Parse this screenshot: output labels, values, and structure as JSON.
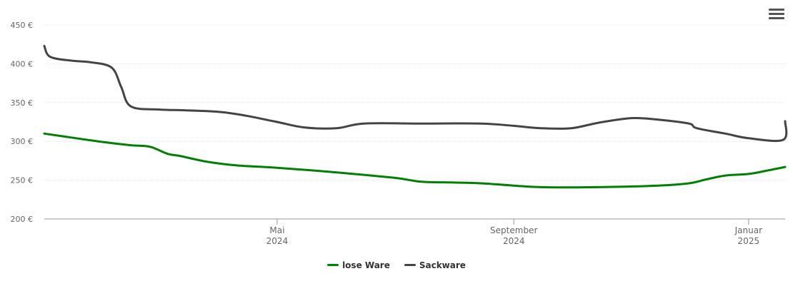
{
  "chart_data": {
    "type": "line",
    "title": "",
    "xlabel": "",
    "ylabel": "",
    "y_unit": "€",
    "ylim": [
      200,
      450
    ],
    "yticks": [
      200,
      250,
      300,
      350,
      400,
      450
    ],
    "ytick_labels": [
      "200 €",
      "250 €",
      "300 €",
      "350 €",
      "400 €",
      "450 €"
    ],
    "xlim": [
      "2024-01-01",
      "2025-01-20"
    ],
    "xticks": [
      {
        "date": "2024-05-01",
        "month": "Mai",
        "year": "2024"
      },
      {
        "date": "2024-09-01",
        "month": "September",
        "year": "2024"
      },
      {
        "date": "2025-01-01",
        "month": "Januar",
        "year": "2025"
      }
    ],
    "grid": true,
    "legend_position": "bottom-center",
    "series": [
      {
        "name": "lose Ware",
        "color": "#008000",
        "points": [
          [
            "2024-01-01",
            310
          ],
          [
            "2024-01-15",
            305
          ],
          [
            "2024-02-01",
            299
          ],
          [
            "2024-02-15",
            295
          ],
          [
            "2024-02-25",
            293
          ],
          [
            "2024-03-05",
            284
          ],
          [
            "2024-03-12",
            281
          ],
          [
            "2024-03-25",
            274
          ],
          [
            "2024-04-10",
            269
          ],
          [
            "2024-05-01",
            266
          ],
          [
            "2024-06-01",
            260
          ],
          [
            "2024-07-01",
            253
          ],
          [
            "2024-07-15",
            248
          ],
          [
            "2024-08-01",
            247
          ],
          [
            "2024-08-15",
            246
          ],
          [
            "2024-09-01",
            243
          ],
          [
            "2024-09-15",
            241
          ],
          [
            "2024-10-15",
            241
          ],
          [
            "2024-11-15",
            243
          ],
          [
            "2024-12-01",
            246
          ],
          [
            "2024-12-10",
            251
          ],
          [
            "2024-12-20",
            256
          ],
          [
            "2025-01-01",
            258
          ],
          [
            "2025-01-10",
            262
          ],
          [
            "2025-01-20",
            267
          ]
        ]
      },
      {
        "name": "Sackware",
        "color": "#434348",
        "points": [
          [
            "2024-01-01",
            423
          ],
          [
            "2024-01-04",
            409
          ],
          [
            "2024-01-15",
            404
          ],
          [
            "2024-01-25",
            402
          ],
          [
            "2024-02-05",
            395
          ],
          [
            "2024-02-10",
            370
          ],
          [
            "2024-02-15",
            345
          ],
          [
            "2024-03-01",
            341
          ],
          [
            "2024-03-15",
            340
          ],
          [
            "2024-04-01",
            338
          ],
          [
            "2024-04-15",
            333
          ],
          [
            "2024-05-01",
            325
          ],
          [
            "2024-05-15",
            318
          ],
          [
            "2024-06-01",
            317
          ],
          [
            "2024-06-15",
            323
          ],
          [
            "2024-07-15",
            323
          ],
          [
            "2024-08-15",
            323
          ],
          [
            "2024-09-01",
            320
          ],
          [
            "2024-09-15",
            317
          ],
          [
            "2024-10-01",
            317
          ],
          [
            "2024-10-15",
            324
          ],
          [
            "2024-11-01",
            330
          ],
          [
            "2024-11-15",
            328
          ],
          [
            "2024-12-01",
            323
          ],
          [
            "2024-12-05",
            317
          ],
          [
            "2024-12-20",
            310
          ],
          [
            "2025-01-01",
            304
          ],
          [
            "2025-01-19",
            302
          ],
          [
            "2025-01-20",
            326
          ]
        ]
      }
    ]
  },
  "menu": {
    "icon": "hamburger-menu-icon"
  }
}
